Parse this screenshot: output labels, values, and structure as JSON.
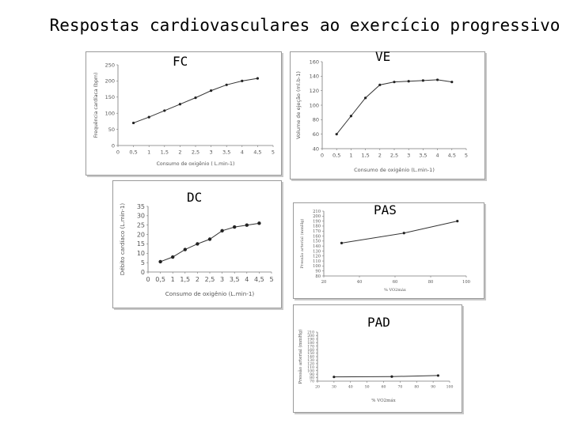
{
  "page_title": "Respostas cardiovasculares ao exercício progressivo",
  "chart_data": [
    {
      "id": "fc",
      "panel_title": "FC",
      "type": "line",
      "ylabel": "Frequência cardíaca (bpm)",
      "xlabel": "Consumo de oxigênio ( L.min-1)",
      "xticks": [
        "0",
        "0,5",
        "1",
        "1,5",
        "2",
        "2,5",
        "3",
        "3,5",
        "4",
        "4,5",
        "5"
      ],
      "xlim": [
        0,
        5
      ],
      "yticks": [
        "0",
        "50",
        "100",
        "150",
        "200",
        "250"
      ],
      "ylim": [
        0,
        250
      ],
      "x": [
        0.5,
        1,
        1.5,
        2,
        2.5,
        3,
        3.5,
        4,
        4.5
      ],
      "values": [
        70,
        88,
        108,
        128,
        148,
        170,
        188,
        200,
        208
      ]
    },
    {
      "id": "ve",
      "panel_title": "VE",
      "type": "line",
      "ylabel": "Volume de ejeção (ml.b-1)",
      "xlabel": "Consumo de oxigênio (L.min-1)",
      "xticks": [
        "0",
        "0,5",
        "1",
        "1,5",
        "2",
        "2,5",
        "3",
        "3,5",
        "4",
        "4,5",
        "5"
      ],
      "xlim": [
        0,
        5
      ],
      "yticks": [
        "40",
        "60",
        "80",
        "100",
        "120",
        "140",
        "160"
      ],
      "ylim": [
        40,
        160
      ],
      "x": [
        0.5,
        1,
        1.5,
        2,
        2.5,
        3,
        3.5,
        4,
        4.5
      ],
      "values": [
        60,
        85,
        110,
        128,
        132,
        133,
        134,
        135,
        132
      ]
    },
    {
      "id": "dc",
      "panel_title": "DC",
      "type": "line",
      "ylabel": "Débito cardíaco (L.min-1)",
      "xlabel": "Consumo de oxigênio (L.min-1)",
      "xticks": [
        "0",
        "0,5",
        "1",
        "1,5",
        "2",
        "2,5",
        "3",
        "3,5",
        "4",
        "4,5",
        "5"
      ],
      "xlim": [
        0,
        5
      ],
      "yticks": [
        "0",
        "5",
        "10",
        "15",
        "20",
        "25",
        "30",
        "35"
      ],
      "ylim": [
        0,
        35
      ],
      "x": [
        0.5,
        1,
        1.5,
        2,
        2.5,
        3,
        3.5,
        4,
        4.5
      ],
      "values": [
        5.5,
        8,
        12,
        15,
        17.5,
        22,
        24,
        25,
        26
      ]
    },
    {
      "id": "pas",
      "panel_title": "PAS",
      "type": "line",
      "ylabel": "Pressão arterial (mmHg)",
      "xlabel": "% VO2máx",
      "xticks": [
        "20",
        "40",
        "60",
        "80",
        "100"
      ],
      "xlim": [
        20,
        100
      ],
      "yticks": [
        "80",
        "90",
        "100",
        "110",
        "120",
        "130",
        "140",
        "150",
        "160",
        "170",
        "180",
        "190",
        "200",
        "210"
      ],
      "ylim": [
        80,
        210
      ],
      "x": [
        30,
        65,
        95
      ],
      "values": [
        146,
        166,
        190
      ]
    },
    {
      "id": "pad",
      "panel_title": "PAD",
      "type": "line",
      "ylabel": "Pressão arterial (mmHg)",
      "xlabel": "% VO2máx",
      "xticks": [
        "20",
        "30",
        "40",
        "50",
        "60",
        "70",
        "80",
        "90",
        "100"
      ],
      "xlim": [
        20,
        100
      ],
      "yticks": [
        "70",
        "80",
        "90",
        "100",
        "110",
        "120",
        "130",
        "140",
        "150",
        "160",
        "170",
        "180",
        "190",
        "200",
        "210"
      ],
      "ylim": [
        70,
        210
      ],
      "x": [
        30,
        65,
        93
      ],
      "values": [
        82,
        83,
        86
      ]
    }
  ]
}
